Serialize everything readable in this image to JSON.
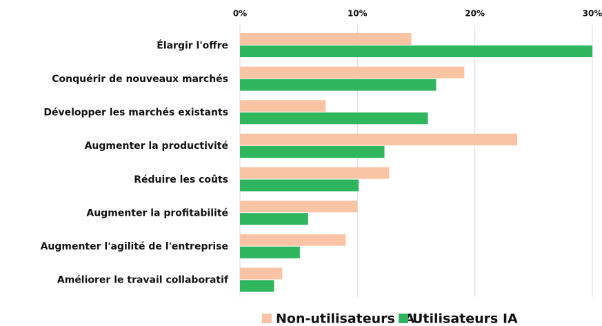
{
  "chart_data": {
    "type": "bar",
    "orientation": "horizontal",
    "categories": [
      "Élargir l'offre",
      "Conquérir de nouveaux marchés",
      "Développer les marchés existants",
      "Augmenter la productivité",
      "Réduire les coûts",
      "Augmenter la profitabilité",
      "Augmenter l'agilité de l'entreprise",
      "Améliorer le travail collaboratif"
    ],
    "series": [
      {
        "name": "Non-utilisateurs IA",
        "color": "#f8c4a4",
        "values": [
          14.6,
          19.1,
          7.3,
          23.6,
          12.7,
          10.0,
          9.0,
          3.6
        ]
      },
      {
        "name": "Utilisateurs IA",
        "color": "#2eb55e",
        "values": [
          30.0,
          16.7,
          16.0,
          12.3,
          10.1,
          5.8,
          5.1,
          2.9
        ]
      }
    ],
    "xlim": [
      0,
      30
    ],
    "xticks": [
      {
        "value": 0,
        "label": "0%"
      },
      {
        "value": 10,
        "label": "10%"
      },
      {
        "value": 20,
        "label": "20%"
      },
      {
        "value": 30,
        "label": "30%"
      }
    ],
    "grid": true,
    "legend": "bottom"
  }
}
